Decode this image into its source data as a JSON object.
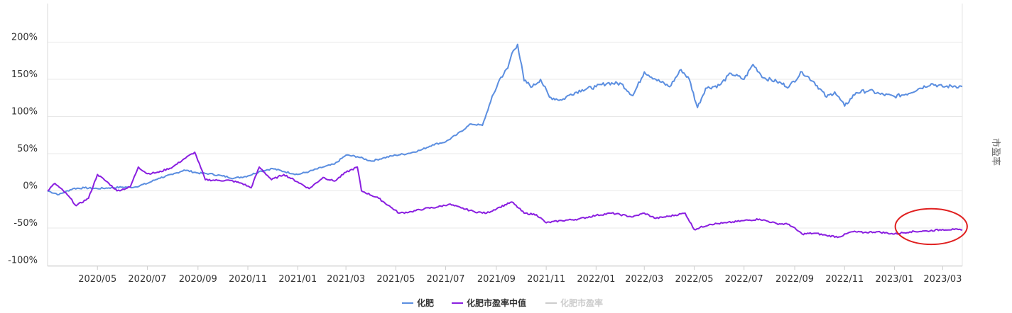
{
  "chart_data": {
    "type": "line",
    "right_axis_label": "市盈率",
    "y_ticks": [
      "-100%",
      "-50%",
      "0%",
      "50%",
      "100%",
      "150%",
      "200%"
    ],
    "y_tick_values": [
      -100,
      -50,
      0,
      50,
      100,
      150,
      200
    ],
    "ylim": [
      -100,
      200
    ],
    "x_ticks": [
      "2020/05",
      "2020/07",
      "2020/09",
      "2020/11",
      "2021/01",
      "2021/03",
      "2021/05",
      "2021/07",
      "2021/09",
      "2021/11",
      "2022/01",
      "2022/03",
      "2022/05",
      "2022/07",
      "2022/09",
      "2022/11",
      "2023/01",
      "2023/03"
    ],
    "x_tick_months": [
      "2020-05",
      "2020-07",
      "2020-09",
      "2020-11",
      "2021-01",
      "2021-03",
      "2021-05",
      "2021-07",
      "2021-09",
      "2021-11",
      "2022-01",
      "2022-03",
      "2022-05",
      "2022-07",
      "2022-09",
      "2022-11",
      "2023-01",
      "2023-03"
    ],
    "xlim": [
      "2020-03-01",
      "2023-03-25"
    ],
    "grid": "horizontal",
    "legend_position": "bottom-center",
    "series": [
      {
        "name": "化肥",
        "color": "#5b8ee0",
        "visible": true,
        "points": [
          [
            "2020-03-01",
            0
          ],
          [
            "2020-03-15",
            -5
          ],
          [
            "2020-04-01",
            3
          ],
          [
            "2020-04-15",
            4
          ],
          [
            "2020-05-01",
            3
          ],
          [
            "2020-05-15",
            4
          ],
          [
            "2020-06-01",
            5
          ],
          [
            "2020-06-15",
            5
          ],
          [
            "2020-07-01",
            10
          ],
          [
            "2020-07-15",
            17
          ],
          [
            "2020-08-01",
            22
          ],
          [
            "2020-08-15",
            28
          ],
          [
            "2020-09-01",
            24
          ],
          [
            "2020-09-15",
            23
          ],
          [
            "2020-10-01",
            20
          ],
          [
            "2020-10-15",
            17
          ],
          [
            "2020-11-01",
            20
          ],
          [
            "2020-11-15",
            26
          ],
          [
            "2020-12-01",
            30
          ],
          [
            "2020-12-15",
            26
          ],
          [
            "2021-01-01",
            22
          ],
          [
            "2021-01-15",
            26
          ],
          [
            "2021-02-01",
            32
          ],
          [
            "2021-02-15",
            36
          ],
          [
            "2021-03-01",
            48
          ],
          [
            "2021-03-15",
            46
          ],
          [
            "2021-04-01",
            40
          ],
          [
            "2021-04-15",
            44
          ],
          [
            "2021-05-01",
            48
          ],
          [
            "2021-05-15",
            50
          ],
          [
            "2021-06-01",
            55
          ],
          [
            "2021-06-15",
            62
          ],
          [
            "2021-07-01",
            66
          ],
          [
            "2021-07-15",
            76
          ],
          [
            "2021-08-01",
            90
          ],
          [
            "2021-08-15",
            88
          ],
          [
            "2021-08-25",
            120
          ],
          [
            "2021-09-05",
            150
          ],
          [
            "2021-09-15",
            165
          ],
          [
            "2021-09-20",
            185
          ],
          [
            "2021-09-27",
            197
          ],
          [
            "2021-10-05",
            148
          ],
          [
            "2021-10-15",
            140
          ],
          [
            "2021-10-25",
            150
          ],
          [
            "2021-11-05",
            126
          ],
          [
            "2021-11-20",
            122
          ],
          [
            "2021-12-01",
            130
          ],
          [
            "2021-12-15",
            136
          ],
          [
            "2022-01-01",
            140
          ],
          [
            "2022-01-15",
            145
          ],
          [
            "2022-02-01",
            144
          ],
          [
            "2022-02-15",
            128
          ],
          [
            "2022-03-01",
            160
          ],
          [
            "2022-03-15",
            150
          ],
          [
            "2022-04-01",
            140
          ],
          [
            "2022-04-15",
            163
          ],
          [
            "2022-04-25",
            150
          ],
          [
            "2022-05-05",
            112
          ],
          [
            "2022-05-15",
            138
          ],
          [
            "2022-06-01",
            142
          ],
          [
            "2022-06-15",
            158
          ],
          [
            "2022-07-01",
            150
          ],
          [
            "2022-07-12",
            170
          ],
          [
            "2022-07-25",
            152
          ],
          [
            "2022-08-10",
            147
          ],
          [
            "2022-08-25",
            140
          ],
          [
            "2022-09-10",
            160
          ],
          [
            "2022-09-25",
            146
          ],
          [
            "2022-10-10",
            126
          ],
          [
            "2022-10-20",
            133
          ],
          [
            "2022-11-01",
            114
          ],
          [
            "2022-11-15",
            132
          ],
          [
            "2022-12-01",
            135
          ],
          [
            "2022-12-15",
            130
          ],
          [
            "2023-01-01",
            127
          ],
          [
            "2023-01-15",
            130
          ],
          [
            "2023-02-01",
            138
          ],
          [
            "2023-02-15",
            144
          ],
          [
            "2023-03-01",
            140
          ],
          [
            "2023-03-15",
            141
          ],
          [
            "2023-03-25",
            140
          ]
        ]
      },
      {
        "name": "化肥市盈率中值",
        "color": "#8a1fe0",
        "visible": true,
        "points": [
          [
            "2020-03-01",
            0
          ],
          [
            "2020-03-10",
            10
          ],
          [
            "2020-03-25",
            -5
          ],
          [
            "2020-04-05",
            -20
          ],
          [
            "2020-04-20",
            -10
          ],
          [
            "2020-05-01",
            22
          ],
          [
            "2020-05-15",
            10
          ],
          [
            "2020-05-25",
            0
          ],
          [
            "2020-06-10",
            5
          ],
          [
            "2020-06-20",
            32
          ],
          [
            "2020-07-01",
            23
          ],
          [
            "2020-07-15",
            25
          ],
          [
            "2020-08-01",
            32
          ],
          [
            "2020-08-15",
            43
          ],
          [
            "2020-08-28",
            52
          ],
          [
            "2020-09-10",
            15
          ],
          [
            "2020-09-25",
            14
          ],
          [
            "2020-10-10",
            14
          ],
          [
            "2020-10-25",
            10
          ],
          [
            "2020-11-05",
            4
          ],
          [
            "2020-11-15",
            32
          ],
          [
            "2020-11-30",
            15
          ],
          [
            "2020-12-15",
            22
          ],
          [
            "2021-01-01",
            12
          ],
          [
            "2021-01-15",
            3
          ],
          [
            "2021-02-01",
            18
          ],
          [
            "2021-02-15",
            13
          ],
          [
            "2021-03-01",
            25
          ],
          [
            "2021-03-15",
            32
          ],
          [
            "2021-03-20",
            0
          ],
          [
            "2021-04-10",
            -10
          ],
          [
            "2021-04-25",
            -22
          ],
          [
            "2021-05-05",
            -30
          ],
          [
            "2021-05-20",
            -28
          ],
          [
            "2021-06-05",
            -24
          ],
          [
            "2021-06-20",
            -22
          ],
          [
            "2021-07-05",
            -18
          ],
          [
            "2021-07-20",
            -23
          ],
          [
            "2021-08-05",
            -28
          ],
          [
            "2021-08-20",
            -30
          ],
          [
            "2021-09-05",
            -22
          ],
          [
            "2021-09-20",
            -15
          ],
          [
            "2021-10-05",
            -30
          ],
          [
            "2021-10-20",
            -32
          ],
          [
            "2021-11-01",
            -43
          ],
          [
            "2021-11-20",
            -40
          ],
          [
            "2021-12-10",
            -38
          ],
          [
            "2022-01-01",
            -33
          ],
          [
            "2022-01-20",
            -30
          ],
          [
            "2022-02-15",
            -35
          ],
          [
            "2022-03-01",
            -30
          ],
          [
            "2022-03-15",
            -37
          ],
          [
            "2022-04-01",
            -34
          ],
          [
            "2022-04-20",
            -30
          ],
          [
            "2022-05-01",
            -52
          ],
          [
            "2022-05-20",
            -45
          ],
          [
            "2022-06-10",
            -43
          ],
          [
            "2022-07-01",
            -40
          ],
          [
            "2022-07-20",
            -38
          ],
          [
            "2022-08-10",
            -44
          ],
          [
            "2022-08-25",
            -45
          ],
          [
            "2022-09-10",
            -58
          ],
          [
            "2022-09-25",
            -57
          ],
          [
            "2022-10-10",
            -60
          ],
          [
            "2022-10-25",
            -62
          ],
          [
            "2022-11-10",
            -55
          ],
          [
            "2022-11-25",
            -56
          ],
          [
            "2022-12-10",
            -55
          ],
          [
            "2023-01-01",
            -58
          ],
          [
            "2023-01-20",
            -55
          ],
          [
            "2023-02-10",
            -54
          ],
          [
            "2023-03-01",
            -52
          ],
          [
            "2023-03-15",
            -52
          ],
          [
            "2023-03-25",
            -53
          ]
        ]
      },
      {
        "name": "化肥市盈率",
        "color": "#cccccc",
        "visible": false,
        "points": []
      }
    ],
    "annotation": {
      "shape": "ellipse",
      "color": "#e02020",
      "center": [
        "2023-02-15",
        -48
      ],
      "rx_days": 44,
      "ry_pct": 24
    }
  }
}
